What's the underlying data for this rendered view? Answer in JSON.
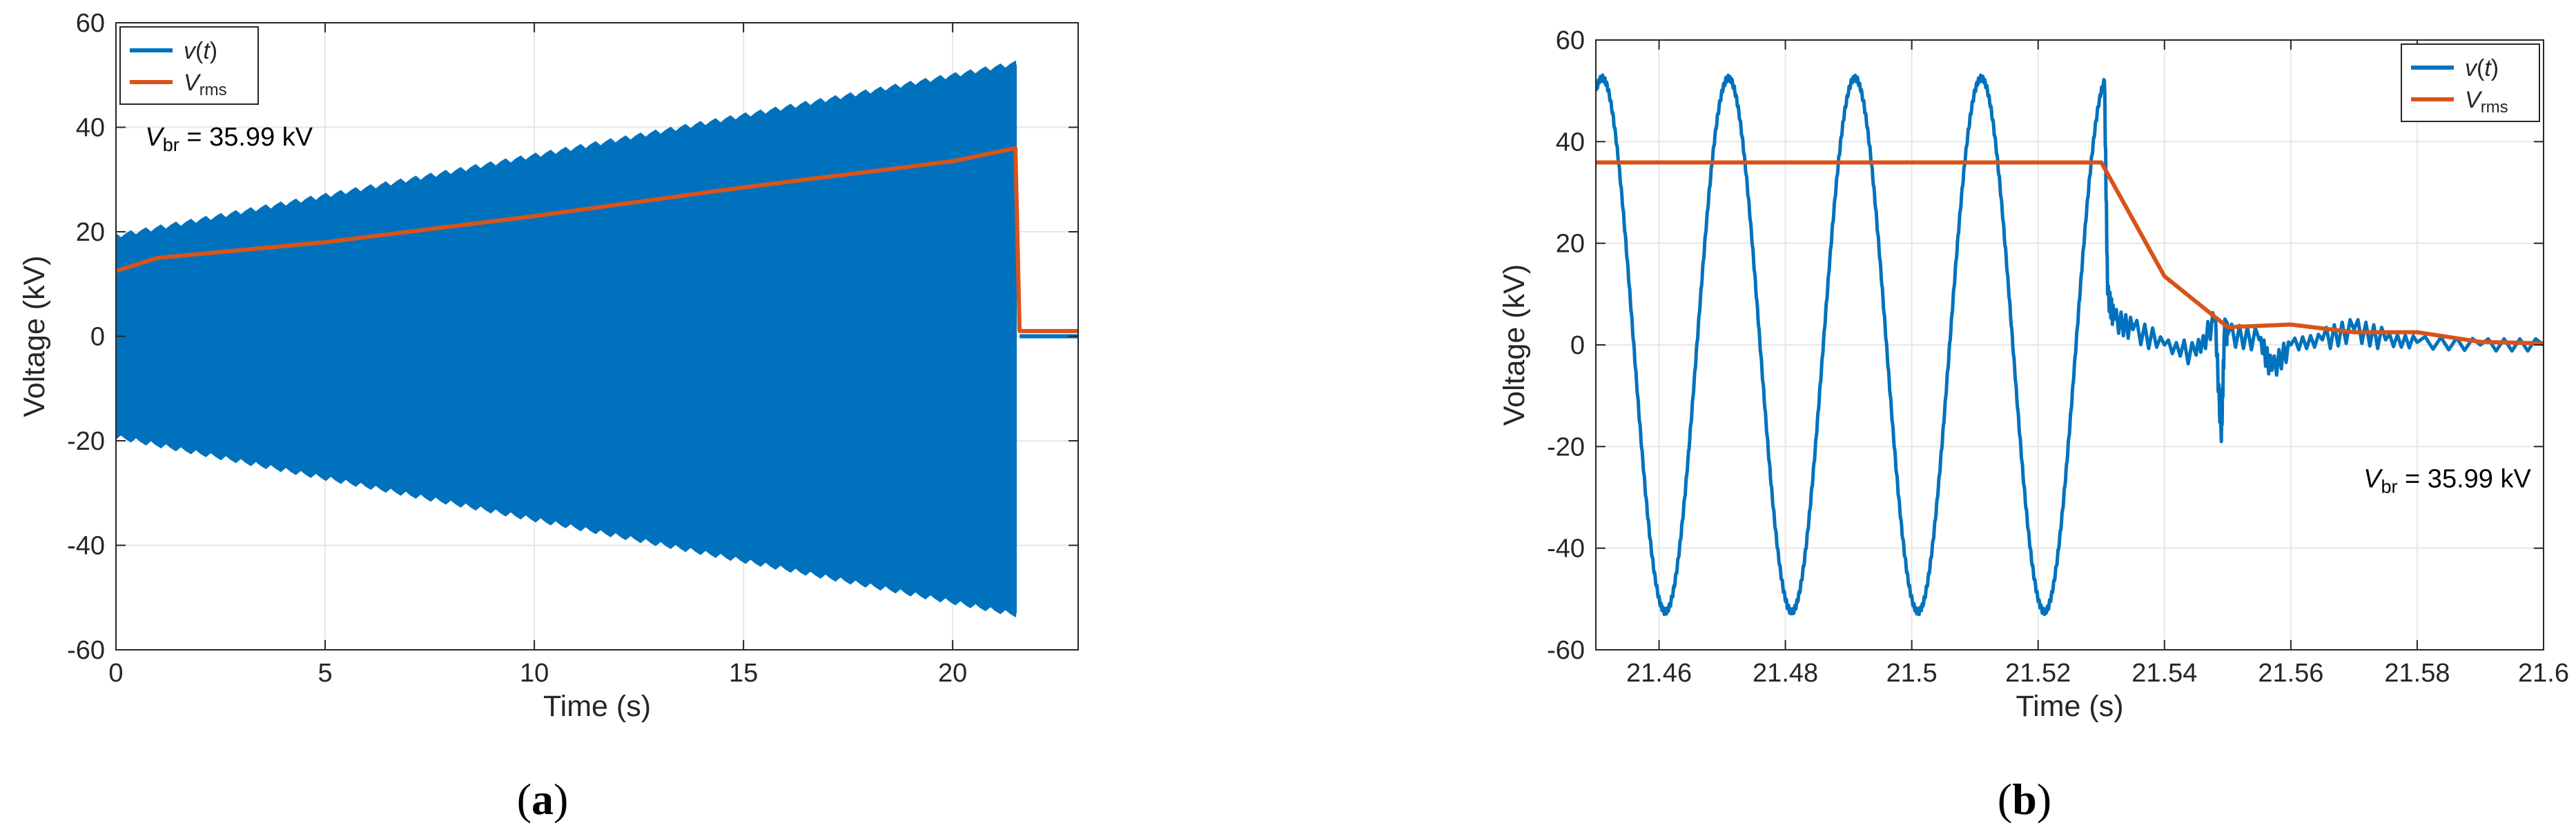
{
  "chart_data": [
    {
      "panel": "a",
      "caption": "(a)",
      "type": "line",
      "xlabel": "Time (s)",
      "ylabel": "Voltage (kV)",
      "xlim": [
        0,
        23
      ],
      "ylim": [
        -60,
        60
      ],
      "xticks": [
        0,
        5,
        10,
        15,
        20
      ],
      "yticks": [
        -60,
        -40,
        -20,
        0,
        20,
        40,
        60
      ],
      "grid": true,
      "legend_position": "top-left",
      "annotation": {
        "text_main": "V",
        "text_sub": "br",
        "text_rest": " = 35.99 kV",
        "x": 0.7,
        "y": 36.5
      },
      "series": [
        {
          "name_main": "v",
          "name_rest": "(t)",
          "color": "#0072BD",
          "style": "oscillation",
          "envelope_x": [
            0,
            21.5
          ],
          "envelope_upper": [
            19,
            52
          ],
          "envelope_lower": [
            -19,
            -53
          ],
          "after_x": [
            21.6,
            23
          ],
          "after_value": 0
        },
        {
          "name_main": "V",
          "name_sub": "rms",
          "color": "#D95319",
          "x": [
            0,
            1,
            5,
            10,
            15,
            20,
            21.5,
            21.6,
            23
          ],
          "y": [
            12.5,
            15,
            18,
            23,
            28.5,
            33.5,
            36,
            1,
            1
          ]
        }
      ]
    },
    {
      "panel": "b",
      "caption": "(b)",
      "type": "line",
      "xlabel": "Time (s)",
      "ylabel": "Voltage (kV)",
      "xlim": [
        21.45,
        21.6
      ],
      "ylim": [
        -60,
        60
      ],
      "xticks": [
        21.46,
        21.48,
        21.5,
        21.52,
        21.54,
        21.56,
        21.58,
        21.6
      ],
      "xticklabels": [
        "21.46",
        "21.48",
        "21.5",
        "21.52",
        "21.54",
        "21.56",
        "21.58",
        "21.6"
      ],
      "yticks": [
        -60,
        -40,
        -20,
        0,
        20,
        40,
        60
      ],
      "grid": true,
      "legend_position": "top-right",
      "annotation": {
        "text_main": "V",
        "text_sub": "br",
        "text_rest": " = 35.99 kV",
        "x": 21.5715,
        "y": -28
      },
      "series": [
        {
          "name_main": "v",
          "name_rest": "(t)",
          "color": "#0072BD",
          "style": "sine",
          "amplitude": 52.5,
          "frequency": 50,
          "peak_at": 21.451,
          "sine_end": 21.5305,
          "noise_x": [
            21.5305,
            21.531,
            21.532,
            21.535,
            21.54,
            21.545,
            21.548,
            21.549,
            21.5495,
            21.55,
            21.555,
            21.557,
            21.56,
            21.565,
            21.57,
            21.575,
            21.58,
            21.59,
            21.6
          ],
          "noise_y": [
            52,
            10,
            5,
            3,
            0,
            -2,
            5,
            -19,
            3,
            2,
            1,
            -5,
            0,
            1,
            3,
            1,
            0.5,
            0,
            0
          ]
        },
        {
          "name_main": "V",
          "name_sub": "rms",
          "color": "#D95319",
          "x": [
            21.45,
            21.53,
            21.54,
            21.55,
            21.56,
            21.57,
            21.58,
            21.59,
            21.6
          ],
          "y": [
            35.9,
            35.9,
            13.5,
            3.5,
            4,
            2.5,
            2.5,
            0.6,
            0.3
          ]
        }
      ]
    }
  ]
}
